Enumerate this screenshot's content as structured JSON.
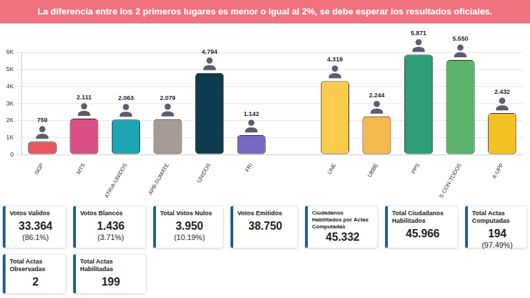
{
  "banner": "La diferencia entre los 2 primeros lugares es menor o igual al 2%, se debe esperar los resultados oficiales.",
  "chart_data": {
    "type": "bar",
    "categories": [
      "NGP",
      "MTS",
      "ATRIA-UNIDOS",
      "APB-SUMATE",
      "UNIDOS",
      "FRI",
      null,
      "UNE",
      "UBBE",
      "PPS",
      "S-CON-TODOS",
      "A-UPP"
    ],
    "values": [
      759,
      2111,
      2063,
      2079,
      4794,
      1142,
      0,
      4319,
      2244,
      5871,
      5550,
      2432
    ],
    "value_labels": [
      "759",
      "2.111",
      "2.063",
      "2.079",
      "4.794",
      "1.142",
      null,
      "4.319",
      "2.244",
      "5.871",
      "5.550",
      "2.432"
    ],
    "colors": [
      "#e8575f",
      "#d94f86",
      "#1ba5b5",
      "#a69b96",
      "#0e3b4d",
      "#7668c0",
      "#1a1a1a",
      "#f9cd4b",
      "#f5b94d",
      "#2e9e78",
      "#5ab36a",
      "#f3c222"
    ],
    "ylim": [
      0,
      6000
    ],
    "yticks": [
      0,
      {
        "value": 1000,
        "label": "1K"
      },
      {
        "value": 2000,
        "label": "2K"
      },
      {
        "value": 3000,
        "label": "3K"
      },
      {
        "value": 4000,
        "label": "4K"
      },
      {
        "value": 5000,
        "label": "5K"
      },
      {
        "value": 6000,
        "label": "6K"
      }
    ],
    "grid": true,
    "data_labels": true
  },
  "stats": [
    {
      "label": "Votos Validos",
      "value": "33.364",
      "detail": "(86.1%)"
    },
    {
      "label": "Votos Blancos",
      "value": "1.436",
      "detail": "(3.71%)"
    },
    {
      "label": "Total Votos Nulos",
      "value": "3.950",
      "detail": "(10.19%)"
    },
    {
      "label": "Votos Emitidos",
      "value": "38.750"
    },
    {
      "label": "Ciudadanos Habilitados por Actas Computadas",
      "value": "45.332"
    },
    {
      "label": "Total Ciudadanos Habilitados",
      "value": "45.966"
    },
    {
      "label": "Total Actas Computadas",
      "value": "194",
      "detail": "(97.49%)"
    },
    {
      "label": "Total Actas Observadas",
      "value": "2"
    },
    {
      "label": "Total Actas Habilitadas",
      "value": "199"
    }
  ]
}
